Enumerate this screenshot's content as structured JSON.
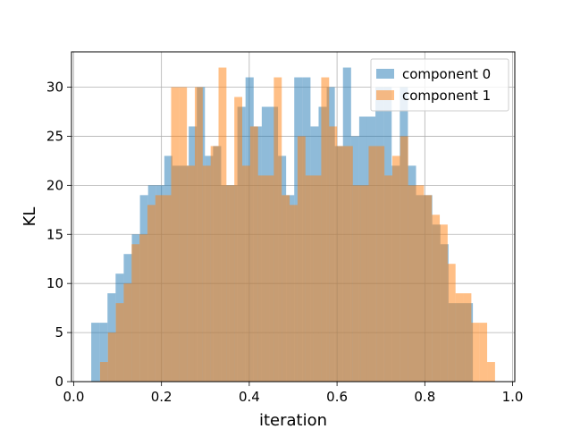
{
  "chart_data": {
    "type": "histogram",
    "title": "",
    "xlabel": "iteration",
    "ylabel": "KL",
    "xlim": [
      -0.005,
      1.005
    ],
    "ylim": [
      0,
      33.6
    ],
    "xticks": [
      "0.0",
      "0.2",
      "0.4",
      "0.6",
      "0.8",
      "1.0"
    ],
    "xtick_values": [
      0.0,
      0.2,
      0.4,
      0.6,
      0.8,
      1.0
    ],
    "yticks": [
      "0",
      "5",
      "10",
      "15",
      "20",
      "25",
      "30"
    ],
    "ytick_values": [
      0,
      5,
      10,
      15,
      20,
      25,
      30
    ],
    "grid": true,
    "legend_position": "top-right",
    "series": [
      {
        "name": "component 0",
        "color": "#1f77b4",
        "alpha": 0.5,
        "bin_edges": [
          0.04,
          0.0585,
          0.077,
          0.0955,
          0.114,
          0.1325,
          0.151,
          0.1695,
          0.188,
          0.2065,
          0.225,
          0.2435,
          0.262,
          0.2805,
          0.299,
          0.3175,
          0.336,
          0.3545,
          0.373,
          0.3915,
          0.41,
          0.4285,
          0.447,
          0.4655,
          0.484,
          0.5025,
          0.521,
          0.5395,
          0.558,
          0.5765,
          0.595,
          0.6135,
          0.632,
          0.6505,
          0.669,
          0.6875,
          0.706,
          0.7245,
          0.743,
          0.7615,
          0.78,
          0.7985,
          0.817,
          0.8355,
          0.854,
          0.8725,
          0.891,
          0.9095
        ],
        "counts": [
          6,
          6,
          9,
          11,
          13,
          15,
          19,
          20,
          20,
          23,
          22,
          22,
          26,
          30,
          23,
          24,
          20,
          20,
          28,
          31,
          26,
          28,
          28,
          23,
          19,
          31,
          31,
          26,
          28,
          30,
          24,
          32,
          25,
          27,
          27,
          30,
          30,
          22,
          30,
          22,
          19,
          19,
          16,
          14,
          8,
          8,
          8
        ]
      },
      {
        "name": "component 1",
        "color": "#ff7f0e",
        "alpha": 0.5,
        "bin_edges": [
          0.06,
          0.078,
          0.096,
          0.114,
          0.132,
          0.15,
          0.168,
          0.186,
          0.204,
          0.222,
          0.24,
          0.258,
          0.276,
          0.294,
          0.312,
          0.33,
          0.348,
          0.366,
          0.384,
          0.402,
          0.42,
          0.438,
          0.456,
          0.474,
          0.492,
          0.51,
          0.528,
          0.546,
          0.564,
          0.582,
          0.6,
          0.618,
          0.636,
          0.654,
          0.672,
          0.69,
          0.708,
          0.726,
          0.744,
          0.762,
          0.78,
          0.798,
          0.816,
          0.834,
          0.852,
          0.87,
          0.888,
          0.906,
          0.924,
          0.942,
          0.96
        ],
        "counts": [
          2,
          5,
          8,
          10,
          14,
          15,
          18,
          19,
          19,
          30,
          30,
          22,
          30,
          22,
          24,
          32,
          20,
          29,
          22,
          26,
          21,
          21,
          31,
          19,
          18,
          25,
          21,
          21,
          31,
          26,
          24,
          24,
          20,
          20,
          24,
          24,
          21,
          23,
          25,
          20,
          20,
          19,
          17,
          16,
          12,
          9,
          9,
          6,
          6,
          2
        ]
      }
    ]
  }
}
